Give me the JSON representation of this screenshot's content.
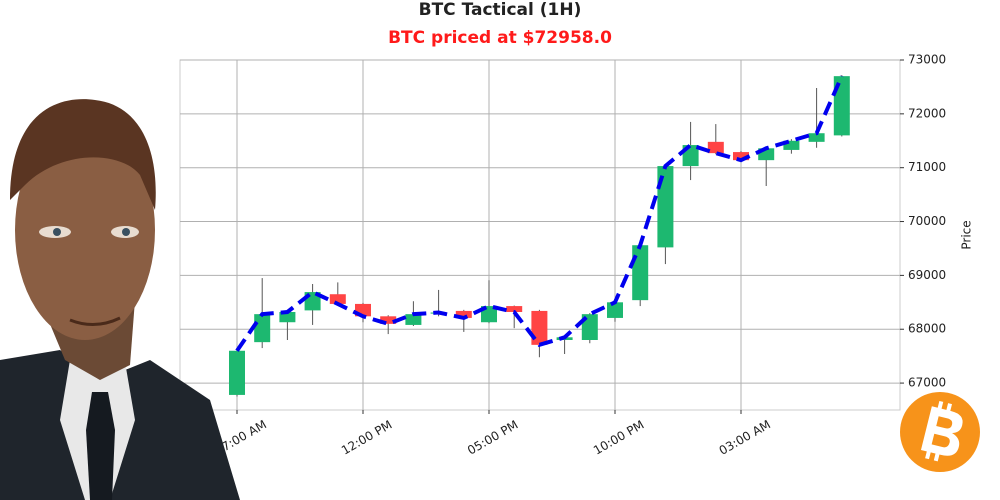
{
  "chart_data": {
    "type": "candlestick",
    "title": "BTC Tactical (1H)",
    "subtitle": "BTC priced at $72958.0",
    "y_label": "Price",
    "categories": [
      "07:00 AM",
      null,
      null,
      null,
      null,
      "12:00 PM",
      null,
      null,
      null,
      null,
      "05:00 PM",
      null,
      null,
      null,
      null,
      "10:00 PM",
      null,
      null,
      null,
      null,
      "03:00 AM",
      null,
      null,
      null,
      null
    ],
    "open": [
      66780,
      67760,
      68130,
      68350,
      68650,
      68470,
      68240,
      68080,
      68290,
      68340,
      68130,
      68430,
      68340,
      67800,
      67800,
      68210,
      68540,
      69520,
      71030,
      71480,
      71290,
      71140,
      71330,
      71480,
      71600
    ],
    "high": [
      67650,
      68950,
      68360,
      68840,
      68870,
      68490,
      68260,
      68520,
      68730,
      68360,
      68910,
      68440,
      68360,
      67870,
      68300,
      68520,
      69580,
      71060,
      71850,
      71810,
      71310,
      71380,
      71530,
      72480,
      72720
    ],
    "low": [
      66750,
      67650,
      67800,
      68080,
      68450,
      68130,
      67910,
      68060,
      68240,
      67950,
      68110,
      68020,
      67480,
      67540,
      67740,
      68140,
      68430,
      69210,
      70770,
      71250,
      71100,
      70660,
      71260,
      71370,
      71580
    ],
    "close": [
      67600,
      68280,
      68320,
      68690,
      68470,
      68240,
      68100,
      68280,
      68310,
      68210,
      68430,
      68320,
      67710,
      67850,
      68280,
      68500,
      69560,
      71030,
      71420,
      71270,
      71140,
      71360,
      71500,
      71640,
      72700
    ],
    "up_color": "#1db870",
    "down_color": "#ff4444",
    "line_color": "#0000ee",
    "ylim": [
      66500,
      73000
    ],
    "yticks": [
      67000,
      68000,
      69000,
      70000,
      71000,
      72000,
      73000
    ],
    "grid": true
  }
}
